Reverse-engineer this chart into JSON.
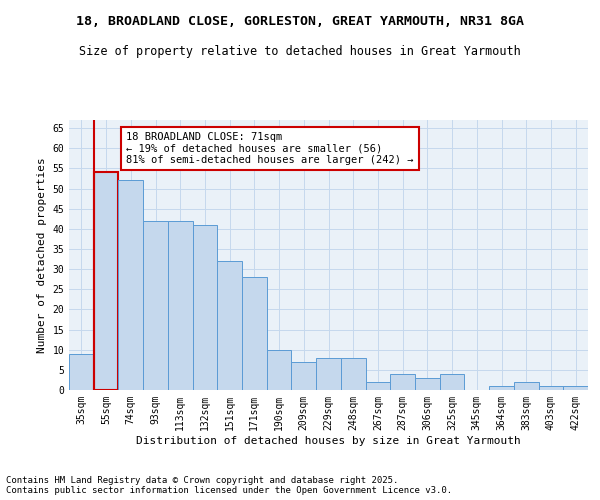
{
  "title1": "18, BROADLAND CLOSE, GORLESTON, GREAT YARMOUTH, NR31 8GA",
  "title2": "Size of property relative to detached houses in Great Yarmouth",
  "xlabel": "Distribution of detached houses by size in Great Yarmouth",
  "ylabel": "Number of detached properties",
  "categories": [
    "35sqm",
    "55sqm",
    "74sqm",
    "93sqm",
    "113sqm",
    "132sqm",
    "151sqm",
    "171sqm",
    "190sqm",
    "209sqm",
    "229sqm",
    "248sqm",
    "267sqm",
    "287sqm",
    "306sqm",
    "325sqm",
    "345sqm",
    "364sqm",
    "383sqm",
    "403sqm",
    "422sqm"
  ],
  "values": [
    9,
    54,
    52,
    42,
    42,
    41,
    32,
    28,
    10,
    7,
    8,
    8,
    2,
    4,
    3,
    4,
    0,
    1,
    2,
    1,
    1
  ],
  "bar_color": "#c5d8ed",
  "bar_edge_color": "#5b9bd5",
  "highlight_bar_index": 1,
  "highlight_edge_color": "#cc0000",
  "vline_x": 0.5,
  "vline_color": "#cc0000",
  "annotation_text": "18 BROADLAND CLOSE: 71sqm\n← 19% of detached houses are smaller (56)\n81% of semi-detached houses are larger (242) →",
  "annotation_box_color": "white",
  "annotation_box_edge_color": "#cc0000",
  "ylim": [
    0,
    67
  ],
  "yticks": [
    0,
    5,
    10,
    15,
    20,
    25,
    30,
    35,
    40,
    45,
    50,
    55,
    60,
    65
  ],
  "grid_color": "#c5d8ed",
  "bg_color": "#eaf1f8",
  "footer1": "Contains HM Land Registry data © Crown copyright and database right 2025.",
  "footer2": "Contains public sector information licensed under the Open Government Licence v3.0.",
  "title_fontsize": 9.5,
  "subtitle_fontsize": 8.5,
  "axis_label_fontsize": 8,
  "tick_fontsize": 7,
  "annotation_fontsize": 7.5,
  "footer_fontsize": 6.5
}
